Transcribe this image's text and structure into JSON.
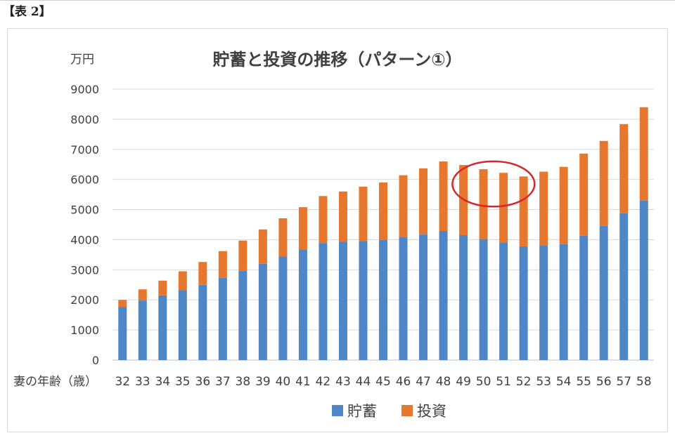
{
  "caption": "【表 2】",
  "chart_data": {
    "type": "bar",
    "stacked": true,
    "title": "貯蓄と投資の推移（パターン①）",
    "y_unit": "万円",
    "xlabel": "妻の年齢（歳）",
    "ylabel": "",
    "ylim": [
      0,
      9000
    ],
    "y_ticks": [
      0,
      1000,
      2000,
      3000,
      4000,
      5000,
      6000,
      7000,
      8000,
      9000
    ],
    "grid": true,
    "legend_position": "bottom",
    "categories": [
      "32",
      "33",
      "34",
      "35",
      "36",
      "37",
      "38",
      "39",
      "40",
      "41",
      "42",
      "43",
      "44",
      "45",
      "46",
      "47",
      "48",
      "49",
      "50",
      "51",
      "52",
      "53",
      "54",
      "55",
      "56",
      "57",
      "58"
    ],
    "series": [
      {
        "name": "貯蓄",
        "color": "#4E86C8",
        "values": [
          1770,
          1980,
          2150,
          2320,
          2500,
          2730,
          2960,
          3200,
          3440,
          3680,
          3890,
          3930,
          3960,
          3990,
          4080,
          4170,
          4290,
          4150,
          4020,
          3910,
          3780,
          3810,
          3850,
          4130,
          4460,
          4880,
          5300
        ]
      },
      {
        "name": "投資",
        "color": "#E8772E",
        "values": [
          230,
          370,
          490,
          630,
          760,
          890,
          1010,
          1140,
          1270,
          1400,
          1560,
          1670,
          1800,
          1910,
          2060,
          2200,
          2310,
          2330,
          2320,
          2310,
          2320,
          2450,
          2570,
          2730,
          2820,
          2960,
          3100
        ]
      }
    ],
    "annotations": [
      {
        "type": "ellipse",
        "color": "#D9262B",
        "x_from": "49",
        "x_to": "52",
        "y_center": 5850,
        "y_radius": 750
      }
    ]
  }
}
